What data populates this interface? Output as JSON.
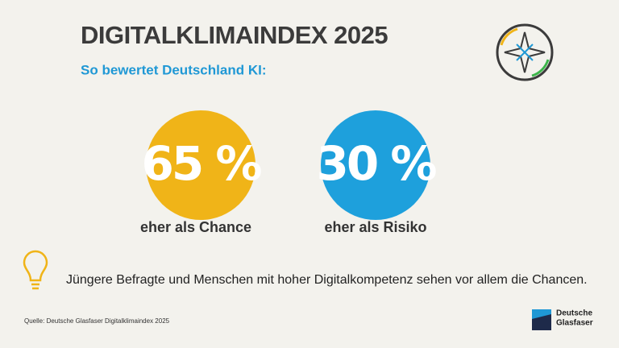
{
  "header": {
    "title": "DIGITALKLIMAINDEX 2025",
    "subtitle": "So bewertet Deutschland KI:"
  },
  "stats": [
    {
      "value": "65 %",
      "label": "eher als Chance"
    },
    {
      "value": "30 %",
      "label": "eher als Risiko"
    }
  ],
  "insight": "Jüngere Befragte und Menschen mit hoher Digitalkompetenz sehen vor allem die Chancen.",
  "footer": {
    "source": "Quelle: Deutsche Glasfaser Digitalklimaindex 2025",
    "logo": [
      "Deutsche",
      "Glasfaser"
    ]
  }
}
